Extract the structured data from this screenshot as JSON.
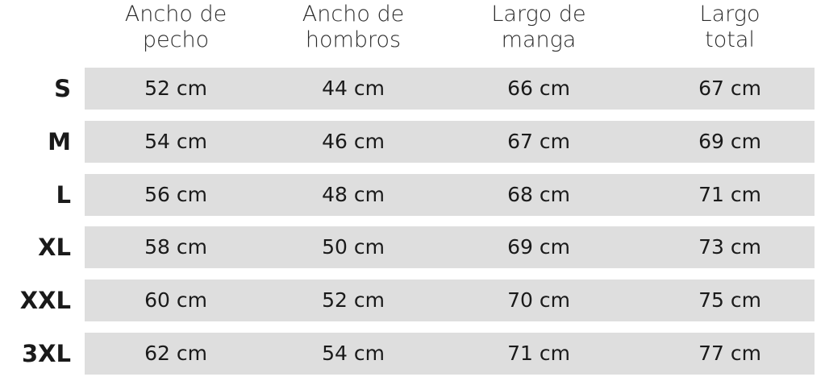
{
  "table": {
    "columns": [
      [
        "Ancho de",
        "pecho"
      ],
      [
        "Ancho de",
        "hombros"
      ],
      [
        "Largo de",
        "manga"
      ],
      [
        "Largo",
        "total"
      ]
    ],
    "rows": [
      {
        "size": "S",
        "cells": [
          "52 cm",
          "44 cm",
          "66 cm",
          "67 cm"
        ]
      },
      {
        "size": "M",
        "cells": [
          "54 cm",
          "46 cm",
          "67 cm",
          "69 cm"
        ]
      },
      {
        "size": "L",
        "cells": [
          "56 cm",
          "48 cm",
          "68 cm",
          "71 cm"
        ]
      },
      {
        "size": "XL",
        "cells": [
          "58 cm",
          "50 cm",
          "69 cm",
          "73 cm"
        ]
      },
      {
        "size": "XXL",
        "cells": [
          "60 cm",
          "52 cm",
          "70 cm",
          "75 cm"
        ]
      },
      {
        "size": "3XL",
        "cells": [
          "62 cm",
          "54 cm",
          "71 cm",
          "77 cm"
        ]
      }
    ]
  }
}
